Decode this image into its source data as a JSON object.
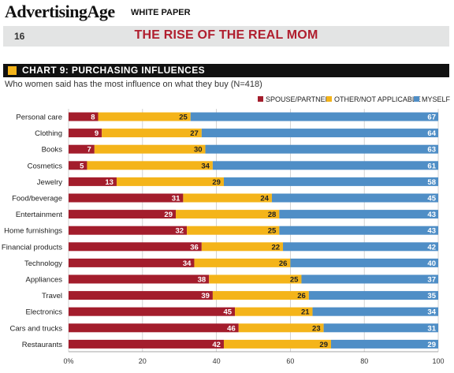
{
  "masthead": {
    "brand": "AdvertisingAge",
    "section": "WHITE PAPER"
  },
  "page": {
    "number": "16",
    "title": "THE RISE OF THE REAL MOM"
  },
  "chart_header": {
    "label": "CHART 9: PURCHASING INFLUENCES"
  },
  "chart_data": {
    "type": "bar",
    "orientation": "horizontal",
    "stacked": true,
    "title": "CHART 9: PURCHASING INFLUENCES",
    "subtitle": "Who women said has the most influence on what they buy (N=418)",
    "xlim": [
      0,
      100
    ],
    "x_ticks": [
      "0%",
      "20",
      "40",
      "60",
      "80",
      "100"
    ],
    "grid": true,
    "legend_position": "top-right",
    "categories": [
      "Personal care",
      "Clothing",
      "Books",
      "Cosmetics",
      "Jewelry",
      "Food/beverage",
      "Entertainment",
      "Home furnishings",
      "Financial products",
      "Technology",
      "Appliances",
      "Travel",
      "Electronics",
      "Cars and trucks",
      "Restaurants"
    ],
    "series": [
      {
        "name": "SPOUSE/PARTNER",
        "color": "#a31d2c",
        "values": [
          8,
          9,
          7,
          5,
          13,
          31,
          29,
          32,
          36,
          34,
          38,
          39,
          45,
          46,
          42
        ]
      },
      {
        "name": "OTHER/NOT APPLICABLE",
        "color": "#f4b41a",
        "values": [
          25,
          27,
          30,
          34,
          29,
          24,
          28,
          25,
          22,
          26,
          25,
          26,
          21,
          23,
          29
        ]
      },
      {
        "name": "MYSELF",
        "color": "#4f8ec6",
        "values": [
          67,
          64,
          63,
          61,
          58,
          45,
          43,
          43,
          42,
          40,
          37,
          35,
          34,
          31,
          29
        ]
      }
    ]
  }
}
